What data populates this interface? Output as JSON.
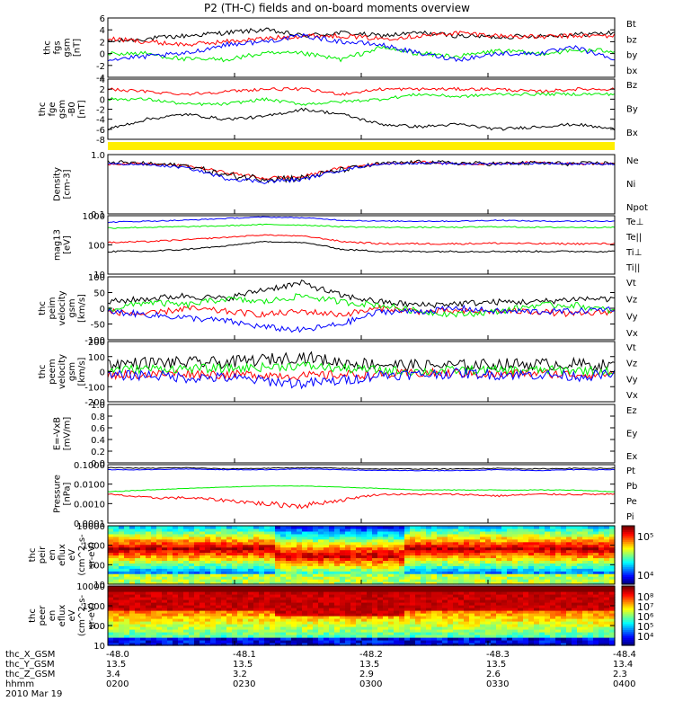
{
  "title": "P2 (TH-C) fields and on-board moments overview",
  "colors": {
    "black": "#000000",
    "red": "#ff0000",
    "green": "#00ee00",
    "blue": "#0000ff",
    "yellow": "#ffee00"
  },
  "chart_data": [
    {
      "id": "fgs",
      "type": "line",
      "ylabel": [
        "thc",
        "fgs",
        "gsm",
        "[nT]"
      ],
      "ylim": [
        -4,
        6
      ],
      "yticks": [
        "6",
        "4",
        "2",
        "0",
        "-2",
        "-4"
      ],
      "series": [
        {
          "name": "Bt",
          "color": "black"
        },
        {
          "name": "bz",
          "color": "red"
        },
        {
          "name": "by",
          "color": "green"
        },
        {
          "name": "bx",
          "color": "blue"
        }
      ]
    },
    {
      "id": "fge",
      "type": "line",
      "ylabel": [
        "thc",
        "fge",
        "gsm",
        "-B0",
        "[nT]"
      ],
      "ylim": [
        -8,
        4
      ],
      "yticks": [
        "4",
        "2",
        "0",
        "-2",
        "-4",
        "-6",
        "-8"
      ],
      "series": [
        {
          "name": "Bz",
          "color": "red"
        },
        {
          "name": "By",
          "color": "green"
        },
        {
          "name": "Bx",
          "color": "black"
        }
      ]
    },
    {
      "id": "mode",
      "type": "bar",
      "ylabel": []
    },
    {
      "id": "density",
      "type": "line",
      "ylabel": [
        "Density",
        "[cm-3]"
      ],
      "ylim": [
        0.1,
        1.0
      ],
      "scale": "log",
      "yticks": [
        "1.0",
        "0.1"
      ],
      "series": [
        {
          "name": "Ne",
          "color": "red"
        },
        {
          "name": "Ni",
          "color": "black"
        },
        {
          "name": "Npot",
          "color": "blue"
        }
      ]
    },
    {
      "id": "temp",
      "type": "line",
      "ylabel": [
        "mag13",
        "[eV]"
      ],
      "ylim": [
        10,
        1000
      ],
      "scale": "log",
      "yticks": [
        "1000",
        "100",
        "10"
      ],
      "series": [
        {
          "name": "Te⊥",
          "color": "red"
        },
        {
          "name": "Te||",
          "color": "black"
        },
        {
          "name": "Ti⊥",
          "color": "blue"
        },
        {
          "name": "Ti||",
          "color": "green"
        }
      ]
    },
    {
      "id": "peim",
      "type": "line",
      "ylabel": [
        "thc",
        "peim",
        "velocity",
        "gsm",
        "[km/s]"
      ],
      "ylim": [
        -100,
        100
      ],
      "yticks": [
        "100",
        "50",
        "0",
        "-50",
        "-100"
      ],
      "series": [
        {
          "name": "Vt",
          "color": "black"
        },
        {
          "name": "Vz",
          "color": "red"
        },
        {
          "name": "Vy",
          "color": "green"
        },
        {
          "name": "Vx",
          "color": "blue"
        }
      ]
    },
    {
      "id": "peem",
      "type": "line",
      "ylabel": [
        "thc",
        "peem",
        "velocity",
        "gsm",
        "[km/s]"
      ],
      "ylim": [
        -200,
        200
      ],
      "yticks": [
        "200",
        "100",
        "0",
        "-100",
        "-200"
      ],
      "series": [
        {
          "name": "Vt",
          "color": "black"
        },
        {
          "name": "Vz",
          "color": "red"
        },
        {
          "name": "Vy",
          "color": "green"
        },
        {
          "name": "Vx",
          "color": "blue"
        }
      ]
    },
    {
      "id": "efield",
      "type": "line",
      "ylabel": [
        "E=-VxB",
        "[mV/m]"
      ],
      "ylim": [
        0,
        1
      ],
      "yticks": [
        "1.0",
        "0.8",
        "0.6",
        "0.4",
        "0.2",
        "0.0"
      ],
      "series": [
        {
          "name": "Ez",
          "color": "red"
        },
        {
          "name": "Ey",
          "color": "green"
        },
        {
          "name": "Ex",
          "color": "blue"
        }
      ]
    },
    {
      "id": "pressure",
      "type": "line",
      "ylabel": [
        "Pressure",
        "[nPa]"
      ],
      "ylim": [
        0.0001,
        0.1
      ],
      "scale": "log",
      "yticks": [
        "0.1000",
        "0.0100",
        "0.0010",
        "0.0001"
      ],
      "series": [
        {
          "name": "Pt",
          "color": "black"
        },
        {
          "name": "Pb",
          "color": "red"
        },
        {
          "name": "Pe",
          "color": "green"
        },
        {
          "name": "Pi",
          "color": "blue"
        }
      ]
    },
    {
      "id": "peir",
      "type": "heatmap",
      "ylabel": [
        "thc",
        "peir",
        "en",
        "eflux",
        "eV",
        "(cm^2-s-",
        "sr-eV)"
      ],
      "ylim": [
        10,
        10000
      ],
      "scale": "log",
      "yticks": [
        "10000",
        "1000",
        "100",
        "10"
      ],
      "colorbar_ticks": [
        "10⁵",
        "10⁴"
      ]
    },
    {
      "id": "peer",
      "type": "heatmap",
      "ylabel": [
        "thc",
        "peer",
        "en",
        "eflux",
        "eV",
        "(cm^2-s-",
        "sr-eV)"
      ],
      "ylim": [
        10,
        10000
      ],
      "scale": "log",
      "yticks": [
        "10000",
        "1000",
        "100",
        "10"
      ],
      "colorbar_ticks": [
        "10⁸",
        "10⁷",
        "10⁶",
        "10⁵",
        "10⁴"
      ]
    }
  ],
  "xaxis": {
    "row_labels": [
      "thc_X_GSM",
      "thc_Y_GSM",
      "thc_Z_GSM",
      "hhmm",
      "2010 Mar 19"
    ],
    "ticks": [
      {
        "x": "-48.0",
        "y": "13.5",
        "z": "3.4",
        "hhmm": "0200"
      },
      {
        "x": "-48.1",
        "y": "13.5",
        "z": "3.2",
        "hhmm": "0230"
      },
      {
        "x": "-48.2",
        "y": "13.5",
        "z": "2.9",
        "hhmm": "0300"
      },
      {
        "x": "-48.3",
        "y": "13.5",
        "z": "2.6",
        "hhmm": "0330"
      },
      {
        "x": "-48.4",
        "y": "13.4",
        "z": "2.3",
        "hhmm": "0400"
      }
    ]
  }
}
